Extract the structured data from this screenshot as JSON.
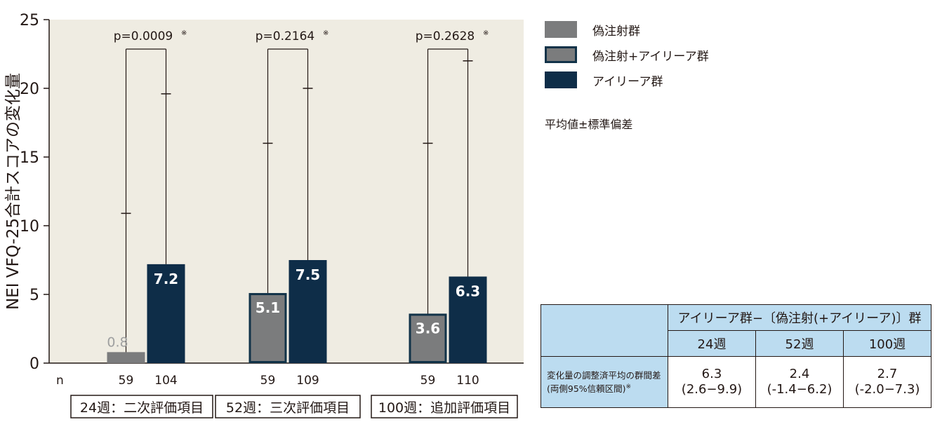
{
  "chart_data": {
    "type": "bar",
    "ylabel": "NEI VFQ-25合計スコアの変化量",
    "ylim": [
      0,
      25
    ],
    "yticks": [
      "0",
      "5",
      "10",
      "15",
      "20",
      "25"
    ],
    "n_label": "n",
    "groups": [
      {
        "label": "24週：二次評価項目",
        "p_value": "p=0.0009",
        "bars": [
          {
            "series": "偽注射群",
            "value": 0.8,
            "label": "0.8",
            "sd_upper": 10.9,
            "n": "59"
          },
          {
            "series": "アイリーア群",
            "value": 7.2,
            "label": "7.2",
            "sd_upper": 19.6,
            "n": "104"
          }
        ]
      },
      {
        "label": "52週：三次評価項目",
        "p_value": "p=0.2164",
        "bars": [
          {
            "series": "偽注射+アイリーア群",
            "value": 5.1,
            "label": "5.1",
            "sd_upper": 16.0,
            "n": "59"
          },
          {
            "series": "アイリーア群",
            "value": 7.5,
            "label": "7.5",
            "sd_upper": 20.0,
            "n": "109"
          }
        ]
      },
      {
        "label": "100週：追加評価項目",
        "p_value": "p=0.2628",
        "bars": [
          {
            "series": "偽注射+アイリーア群",
            "value": 3.6,
            "label": "3.6",
            "sd_upper": 16.0,
            "n": "59"
          },
          {
            "series": "アイリーア群",
            "value": 6.3,
            "label": "6.3",
            "sd_upper": 22.0,
            "n": "110"
          }
        ]
      }
    ],
    "legend": [
      {
        "label": "偽注射群",
        "color": "#7b7c7d",
        "border": "#7b7c7d"
      },
      {
        "label": "偽注射+アイリーア群",
        "color": "#7b7c7d",
        "border": "#123349"
      },
      {
        "label": "アイリーア群",
        "color": "#0e2d48",
        "border": "#0e2d48"
      }
    ],
    "plot_background": "#efece2",
    "footnote_mark": "※"
  },
  "sd_note": "平均値±標準偏差",
  "table": {
    "title": "アイリーア群−〔偽注射(+アイリーア)〕群",
    "weeks": [
      "24週",
      "52週",
      "100週"
    ],
    "row_label_line1": "変化量の調整済平均の群間差",
    "row_label_line2": "(両側95%信頼区間)",
    "row_label_mark": "※",
    "values": [
      {
        "estimate": "6.3",
        "ci": "(2.6−9.9)"
      },
      {
        "estimate": "2.4",
        "ci": "(-1.4−6.2)"
      },
      {
        "estimate": "2.7",
        "ci": "(-2.0−7.3)"
      }
    ]
  }
}
